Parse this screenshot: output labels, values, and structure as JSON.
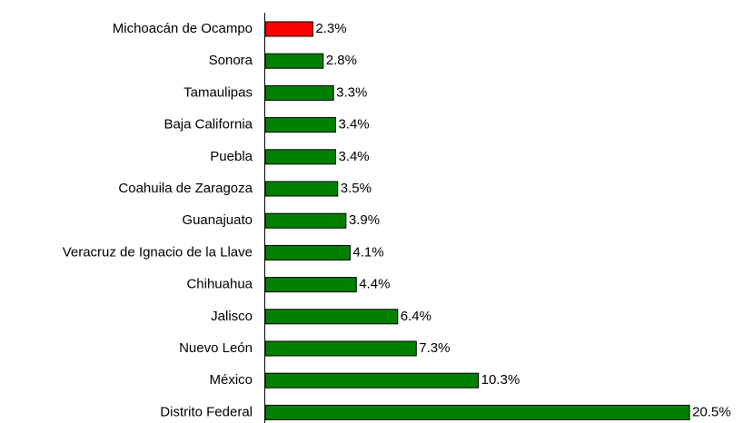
{
  "chart_data": {
    "type": "bar",
    "orientation": "horizontal",
    "categories": [
      "Michoacán de Ocampo",
      "Sonora",
      "Tamaulipas",
      "Baja California",
      "Puebla",
      "Coahuila de Zaragoza",
      "Guanajuato",
      "Veracruz de Ignacio de la Llave",
      "Chihuahua",
      "Jalisco",
      "Nuevo León",
      "México",
      "Distrito Federal"
    ],
    "values": [
      2.3,
      2.8,
      3.3,
      3.4,
      3.4,
      3.5,
      3.9,
      4.1,
      4.4,
      6.4,
      7.3,
      10.3,
      20.5
    ],
    "value_labels": [
      "2.3%",
      "2.8%",
      "3.3%",
      "3.4%",
      "3.4%",
      "3.5%",
      "3.9%",
      "4.1%",
      "4.4%",
      "6.4%",
      "7.3%",
      "10.3%",
      "20.5%"
    ],
    "colors": [
      "#ff0000",
      "#008000",
      "#008000",
      "#008000",
      "#008000",
      "#008000",
      "#008000",
      "#008000",
      "#008000",
      "#008000",
      "#008000",
      "#008000",
      "#008000"
    ]
  }
}
